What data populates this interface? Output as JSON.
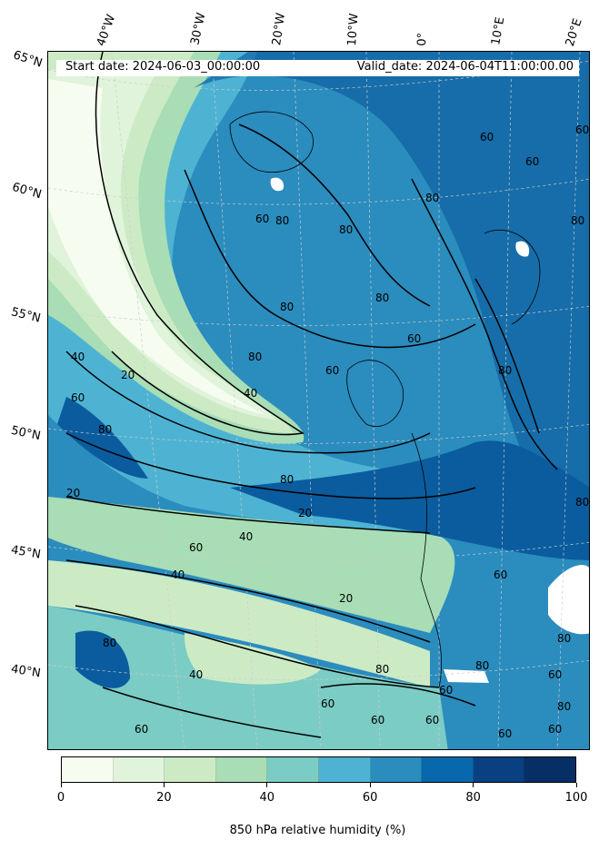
{
  "map": {
    "start_date": "Start date: 2024-06-03_00:00:00",
    "valid_date": "Valid_date: 2024-06-04T11:00:00.00",
    "longitude_labels": [
      "40°W",
      "30°W",
      "20°W",
      "10°W",
      "0°",
      "10°E",
      "20°E"
    ],
    "latitude_labels": [
      "65°N",
      "60°N",
      "55°N",
      "50°N",
      "45°N",
      "40°N"
    ],
    "contour_levels": [
      20,
      40,
      60,
      80
    ],
    "contour_labels_visible": [
      "80",
      "60",
      "60",
      "80",
      "80",
      "80",
      "80",
      "60",
      "80",
      "40",
      "20",
      "60",
      "40",
      "80",
      "60",
      "80",
      "80",
      "20",
      "20",
      "60",
      "40",
      "40",
      "20",
      "40",
      "60",
      "80",
      "60",
      "80",
      "80",
      "60",
      "60",
      "60",
      "60",
      "60",
      "80",
      "60",
      "60",
      "80",
      "60",
      "80",
      "80",
      "60"
    ]
  },
  "colorbar": {
    "title": "850 hPa relative humidity (%)",
    "tick_labels": [
      "0",
      "20",
      "40",
      "60",
      "80",
      "100"
    ],
    "colors": [
      "#f7fcf0",
      "#e0f3db",
      "#ccebc5",
      "#a8ddb5",
      "#7bccc4",
      "#4eb3d3",
      "#2b8cbe",
      "#0868ac",
      "#084081",
      "#062f66"
    ],
    "range": [
      0,
      100
    ]
  },
  "colors": {
    "very_dry": "#f0f9e8",
    "dry": "#ccebc5",
    "mid": "#7bccc4",
    "moist": "#2b8cbe",
    "saturated": "#0a5c9e",
    "contour_line": "#000000"
  }
}
